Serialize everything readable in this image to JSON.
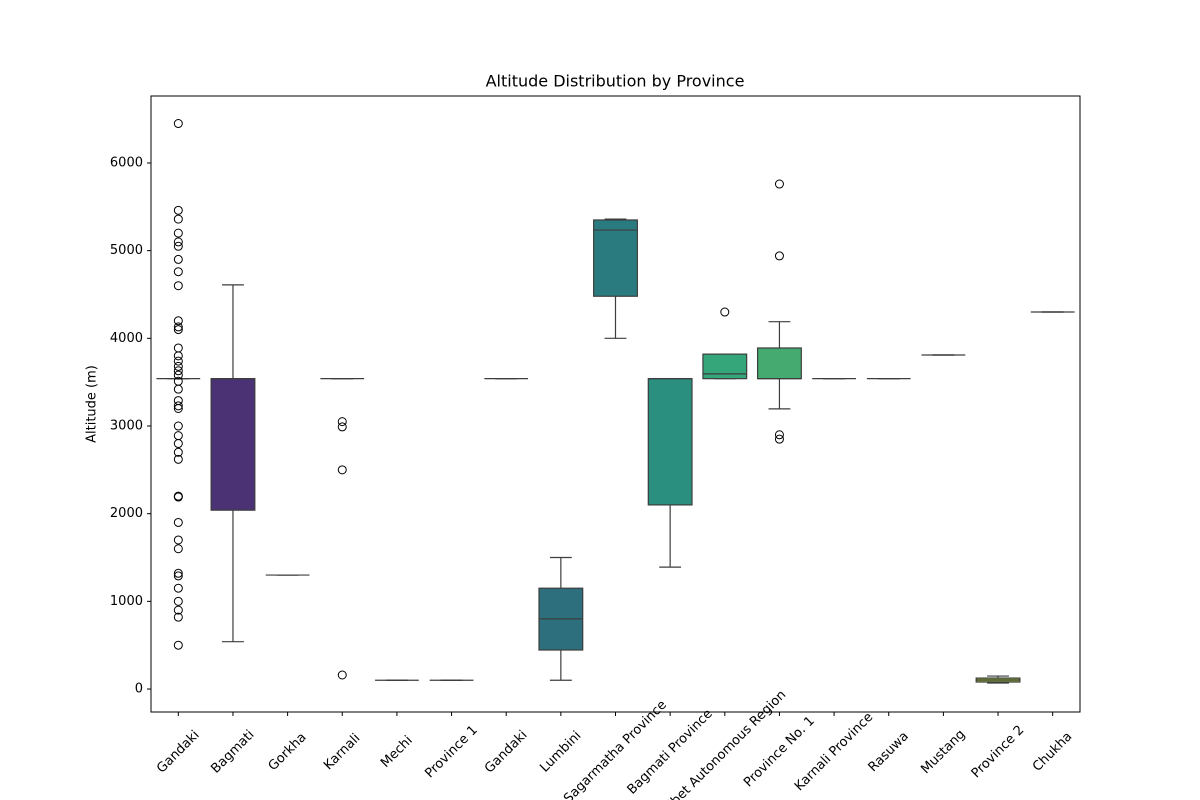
{
  "chart_data": {
    "type": "box",
    "title": "Altitude Distribution by Province",
    "y_label": "Altitude (m)",
    "categories": [
      "Gandaki",
      "Bagmati",
      "Gorkha",
      "Karnali",
      "Mechi",
      "Province 1",
      "Gandaki",
      "Lumbini",
      "Sagarmatha Province",
      "Bagmati Province",
      "Tibet Autonomous Region",
      "Province No. 1",
      "Karnali Province",
      "Rasuwa",
      "Mustang",
      "Province 2",
      "Chukha"
    ],
    "colors": [
      "#472c61",
      "#4a3275",
      "#4a4278",
      "#444f7a",
      "#3e5b7b",
      "#386a7c",
      "#32727c",
      "#2e6f7e",
      "#2a7b7f",
      "#2a8f7f",
      "#35a57a",
      "#44aa70",
      "#58b45f",
      "#7cbd4b",
      "#a0c63b",
      "#9ab93a",
      "#d8d92a"
    ],
    "boxes": [
      {
        "whislo": 3540,
        "q1": 3540,
        "med": 3540,
        "q3": 3540,
        "whishi": 3540,
        "fliers": [
          6450,
          5460,
          5360,
          5200,
          5100,
          5050,
          4900,
          4760,
          4600,
          4200,
          4130,
          4100,
          3890,
          3800,
          3740,
          3680,
          3630,
          3580,
          3510,
          3420,
          3290,
          3230,
          3200,
          3000,
          2890,
          2800,
          2700,
          2620,
          2200,
          2190,
          1900,
          1700,
          1600,
          1320,
          1290,
          1150,
          1000,
          900,
          820,
          500
        ]
      },
      {
        "whislo": 540,
        "q1": 2040,
        "med": 3540,
        "q3": 3540,
        "whishi": 4610,
        "fliers": []
      },
      {
        "whislo": 1300,
        "q1": 1300,
        "med": 1300,
        "q3": 1300,
        "whishi": 1300,
        "fliers": []
      },
      {
        "whislo": 3540,
        "q1": 3540,
        "med": 3540,
        "q3": 3540,
        "whishi": 3540,
        "fliers": [
          3050,
          2990,
          2500,
          160
        ]
      },
      {
        "whislo": 100,
        "q1": 100,
        "med": 100,
        "q3": 100,
        "whishi": 100,
        "fliers": []
      },
      {
        "whislo": 100,
        "q1": 100,
        "med": 100,
        "q3": 100,
        "whishi": 100,
        "fliers": []
      },
      {
        "whislo": 3540,
        "q1": 3540,
        "med": 3540,
        "q3": 3540,
        "whishi": 3540,
        "fliers": []
      },
      {
        "whislo": 100,
        "q1": 445,
        "med": 800,
        "q3": 1150,
        "whishi": 1500,
        "fliers": []
      },
      {
        "whislo": 4000,
        "q1": 4480,
        "med": 5235,
        "q3": 5350,
        "whishi": 5360,
        "fliers": []
      },
      {
        "whislo": 1390,
        "q1": 2100,
        "med": 3540,
        "q3": 3540,
        "whishi": 3540,
        "fliers": []
      },
      {
        "whislo": 3540,
        "q1": 3540,
        "med": 3595,
        "q3": 3820,
        "whishi": 3820,
        "fliers": [
          4300
        ]
      },
      {
        "whislo": 3195,
        "q1": 3540,
        "med": 3540,
        "q3": 3890,
        "whishi": 4190,
        "fliers": [
          5760,
          4940,
          2900,
          2850
        ]
      },
      {
        "whislo": 3540,
        "q1": 3540,
        "med": 3540,
        "q3": 3540,
        "whishi": 3540,
        "fliers": []
      },
      {
        "whislo": 3540,
        "q1": 3540,
        "med": 3540,
        "q3": 3540,
        "whishi": 3540,
        "fliers": []
      },
      {
        "whislo": 3810,
        "q1": 3810,
        "med": 3810,
        "q3": 3810,
        "whishi": 3810,
        "fliers": []
      },
      {
        "whislo": 68,
        "q1": 80,
        "med": 103,
        "q3": 125,
        "whishi": 148,
        "fliers": []
      },
      {
        "whislo": 4300,
        "q1": 4300,
        "med": 4300,
        "q3": 4300,
        "whishi": 4300,
        "fliers": []
      }
    ],
    "ylim": [
      -262,
      6764
    ],
    "yticks": [
      0,
      1000,
      2000,
      3000,
      4000,
      5000,
      6000
    ]
  }
}
